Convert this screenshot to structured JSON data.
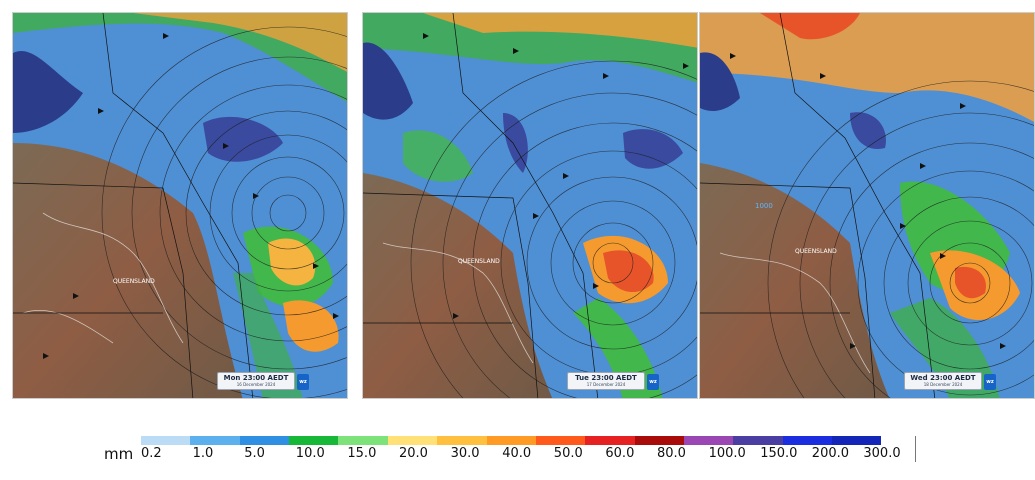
{
  "panels": [
    {
      "name": "panel-mon",
      "timestamp": "Mon 23:00 AEDT",
      "date": "16 December 2024",
      "state_label": "QUEENSLAND"
    },
    {
      "name": "panel-tue",
      "timestamp": "Tue 23:00 AEDT",
      "date": "17 December 2024",
      "state_label": "QUEENSLAND"
    },
    {
      "name": "panel-wed",
      "timestamp": "Wed 23:00 AEDT",
      "date": "18 December 2024",
      "state_label": "QUEENSLAND",
      "pressure_label": "1000"
    }
  ],
  "legend": {
    "unit": "mm",
    "ticks": [
      "0.2",
      "1.0",
      "5.0",
      "10.0",
      "15.0",
      "20.0",
      "30.0",
      "40.0",
      "50.0",
      "60.0",
      "80.0",
      "100.0",
      "150.0",
      "200.0",
      "300.0"
    ],
    "colors": [
      "#bcdcf6",
      "#5cb0ee",
      "#2f8fe3",
      "#17b837",
      "#7ee27a",
      "#ffe177",
      "#ffbf3f",
      "#ff9a24",
      "#ff5a1c",
      "#e52121",
      "#a90a0a",
      "#9b47b3",
      "#4b3ea2",
      "#1a2ee0",
      "#1426b7"
    ]
  }
}
